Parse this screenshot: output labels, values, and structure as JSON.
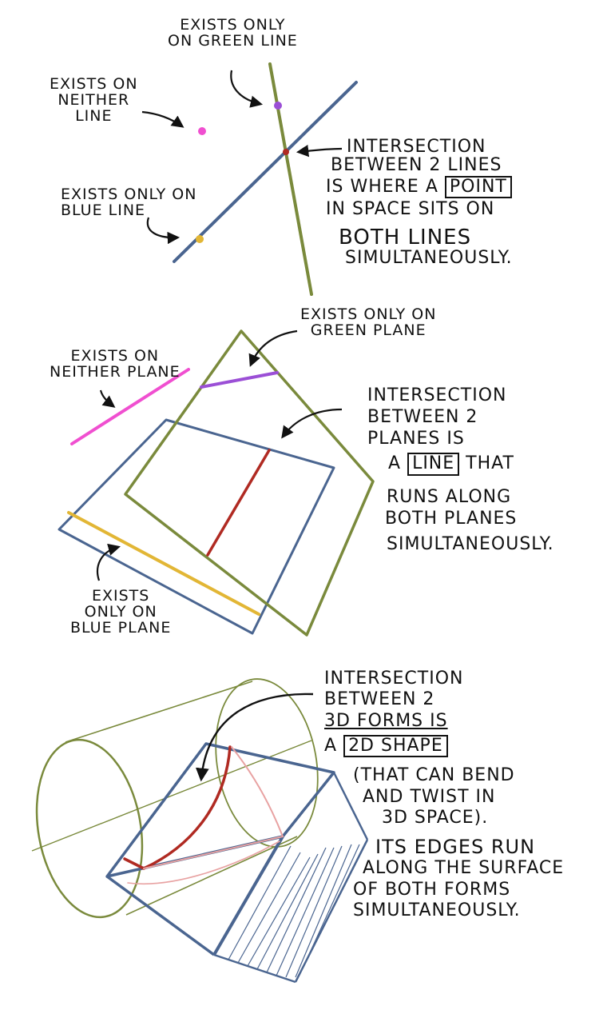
{
  "colors": {
    "green": "#7a8a3c",
    "blue": "#4a6590",
    "purple": "#9b4fd6",
    "pink": "#f04fd0",
    "red": "#b02a22",
    "yellow": "#e2b635",
    "pale_red": "#e8a2a2",
    "ink": "#111111"
  },
  "section_lines": {
    "label_green_only": [
      "Exists only",
      "on green line"
    ],
    "label_neither": [
      "Exists on",
      "neither",
      "line"
    ],
    "label_blue_only": [
      "Exists only on",
      "blue line"
    ],
    "explanation": {
      "line1": "Intersection",
      "line2": "between 2 lines",
      "line3_pre": "is where a",
      "line3_box": "point",
      "line4": "in space sits on",
      "line5": "both lines",
      "line6": "simultaneously."
    }
  },
  "section_planes": {
    "label_green_only": [
      "Exists only on",
      "green plane"
    ],
    "label_neither": [
      "Exists on",
      "neither plane"
    ],
    "label_blue_only": [
      "Exists",
      "only on",
      "blue plane"
    ],
    "explanation": {
      "line1": "Intersection",
      "line2": "between 2",
      "line3": "planes is",
      "line4_pre": "a",
      "line4_box": "line",
      "line4_post": "that",
      "line5": "runs along",
      "line6": "both planes",
      "line7": "simultaneously."
    }
  },
  "section_forms": {
    "explanation": {
      "line1": "Intersection",
      "line2": "between 2",
      "line3": "3D forms is",
      "line4_pre": "a",
      "line4_box": "2D shape",
      "line5": "(that can bend",
      "line6": "and twist in",
      "line7": "3D space).",
      "line8": "Its edges run",
      "line9": "along the surface",
      "line10": "of both forms",
      "line11": "simultaneously."
    }
  }
}
